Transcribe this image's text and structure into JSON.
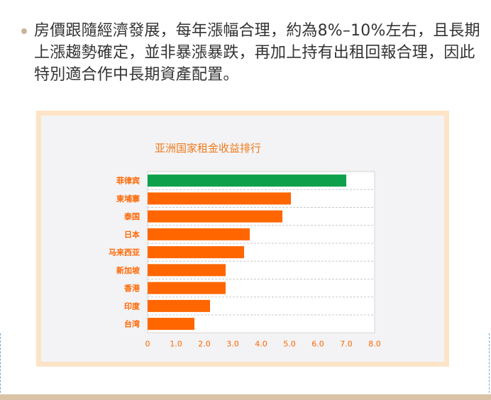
{
  "paragraph": {
    "text": "房價跟隨經濟發展，每年漲幅合理，約為8%–10%左右，且長期上漲趨勢確定，並非暴漲暴跌，再加上持有出租回報合理，因此特別適合作中長期資產配置。"
  },
  "chart_data": {
    "type": "bar",
    "orientation": "horizontal",
    "title": "亚洲国家租金收益排行",
    "xlabel": "",
    "ylabel": "",
    "xlim": [
      0,
      8
    ],
    "x_ticks": [
      "0",
      "1.0",
      "2.0",
      "3.0",
      "4.0",
      "5.0",
      "6.0",
      "7.0",
      "8.0"
    ],
    "categories": [
      "菲律宾",
      "柬埔寨",
      "泰国",
      "日本",
      "马来西亚",
      "新加坡",
      "香港",
      "印度",
      "台湾"
    ],
    "values": [
      7.0,
      5.05,
      4.75,
      3.6,
      3.4,
      2.75,
      2.75,
      2.2,
      1.65
    ],
    "bar_colors": [
      "#0ea04a",
      "#ff6600",
      "#ff6600",
      "#ff6600",
      "#ff6600",
      "#ff6600",
      "#ff6600",
      "#ff6600",
      "#ff6600"
    ],
    "label_color": "#ff6600",
    "title_color": "#f07a1c",
    "grid": true
  }
}
